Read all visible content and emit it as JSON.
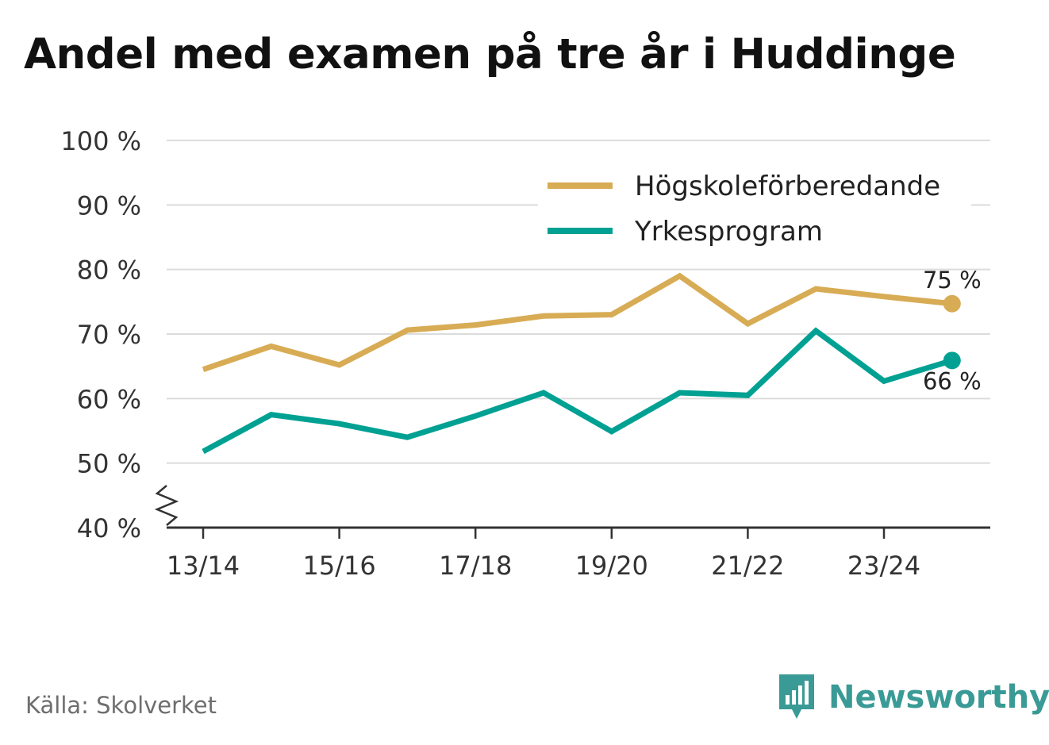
{
  "title": "Andel med examen på tre år i Huddinge",
  "source": "Källa: Skolverket",
  "brand": {
    "name": "Newsworthy",
    "icon": "newsworthy-logo-icon"
  },
  "colors": {
    "series1": "#d8ac55",
    "series2": "#00a193",
    "grid": "#dcdcdc",
    "axis": "#333333"
  },
  "chart_data": {
    "type": "line",
    "title": "Andel med examen på tre år i Huddinge",
    "x": [
      "13/14",
      "14/15",
      "15/16",
      "16/17",
      "17/18",
      "18/19",
      "19/20",
      "20/21",
      "21/22",
      "22/23",
      "23/24",
      "24/25"
    ],
    "x_tick_labels": [
      "13/14",
      "15/16",
      "17/18",
      "19/20",
      "21/22",
      "23/24"
    ],
    "y_tick_labels": [
      "40 %",
      "50 %",
      "60 %",
      "70 %",
      "80 %",
      "90 %",
      "100 %"
    ],
    "ylim": [
      40,
      100
    ],
    "y_axis_break": true,
    "grid": true,
    "legend_position": "top-right",
    "series": [
      {
        "name": "Högskoleförberedande",
        "values": [
          64.5,
          68.1,
          65.2,
          70.6,
          71.4,
          72.8,
          73.0,
          79.0,
          71.6,
          77.0,
          75.8,
          74.7
        ],
        "end_label": "75 %"
      },
      {
        "name": "Yrkesprogram",
        "values": [
          51.8,
          57.5,
          56.1,
          54.0,
          57.3,
          60.9,
          54.9,
          60.9,
          60.5,
          70.5,
          62.7,
          65.9
        ],
        "end_label": "66 %"
      }
    ]
  }
}
